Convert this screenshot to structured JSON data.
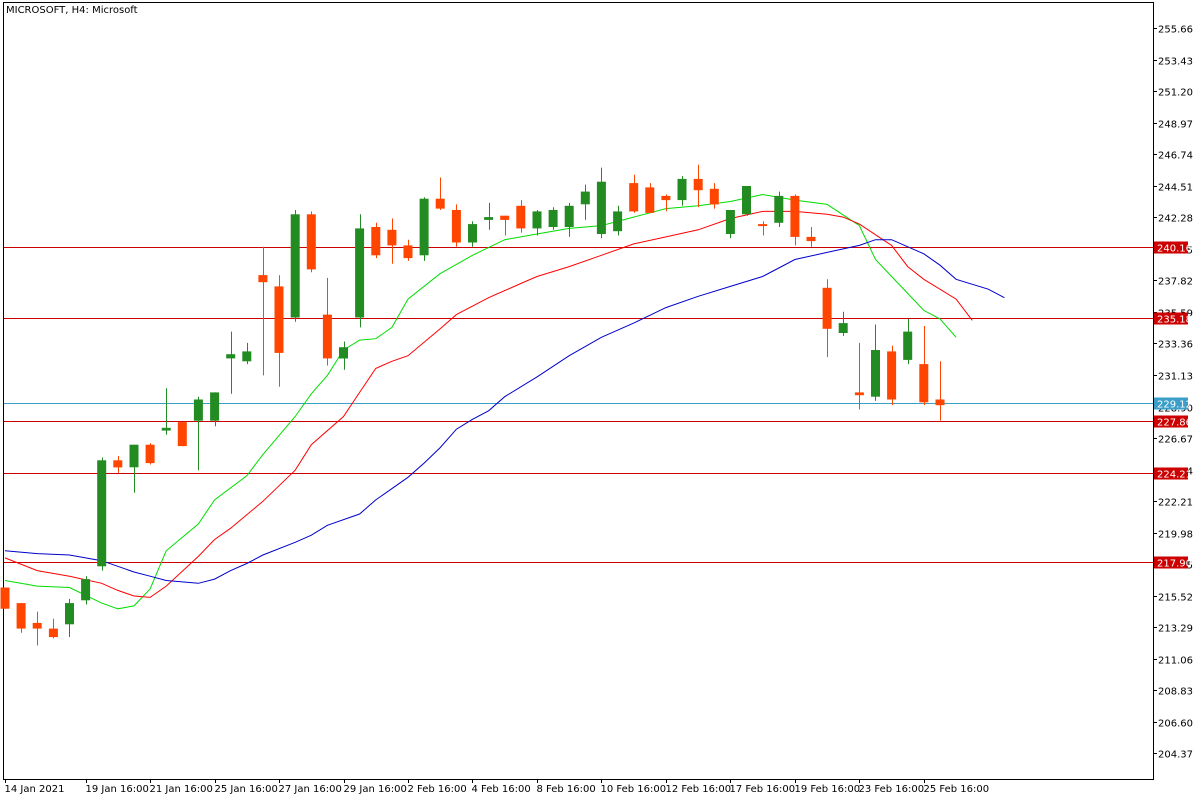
{
  "chart_data": {
    "type": "candlestick",
    "title": "MICROSOFT, H4:  Microsoft",
    "ylim": [
      202.56,
      257.44
    ],
    "y_ticks": [
      "255.66",
      "253.43",
      "251.20",
      "248.97",
      "246.74",
      "244.51",
      "242.28",
      "240.05",
      "237.82",
      "235.59",
      "233.36",
      "231.13",
      "228.90",
      "226.67",
      "224.44",
      "222.21",
      "219.98",
      "217.75",
      "215.52",
      "213.29",
      "211.06",
      "208.83",
      "206.60",
      "204.37"
    ],
    "x_labels": [
      "14 Jan 2021",
      "19 Jan 16:00",
      "21 Jan 16:00",
      "25 Jan 16:00",
      "27 Jan 16:00",
      "29 Jan 16:00",
      "2 Feb 16:00",
      "4 Feb 16:00",
      "8 Feb 16:00",
      "10 Feb 16:00",
      "12 Feb 16:00",
      "17 Feb 16:00",
      "19 Feb 16:00",
      "23 Feb 16:00",
      "25 Feb 16:00"
    ],
    "x_label_index": [
      0,
      5,
      9,
      13,
      17,
      21,
      25,
      29,
      33,
      37,
      41,
      45,
      49,
      53,
      57
    ],
    "candles": [
      {
        "o": 216.1,
        "h": 216.1,
        "l": 214.6,
        "c": 214.6
      },
      {
        "o": 215.0,
        "h": 215.0,
        "l": 212.9,
        "c": 213.2
      },
      {
        "o": 213.6,
        "h": 214.4,
        "l": 212.0,
        "c": 213.2
      },
      {
        "o": 213.2,
        "h": 213.9,
        "l": 212.5,
        "c": 212.6
      },
      {
        "o": 213.5,
        "h": 215.3,
        "l": 212.6,
        "c": 215.0
      },
      {
        "o": 215.2,
        "h": 216.9,
        "l": 214.9,
        "c": 216.7
      },
      {
        "o": 217.6,
        "h": 225.3,
        "l": 217.3,
        "c": 225.1
      },
      {
        "o": 225.1,
        "h": 225.4,
        "l": 224.2,
        "c": 224.6
      },
      {
        "o": 224.6,
        "h": 226.2,
        "l": 222.8,
        "c": 226.2
      },
      {
        "o": 226.2,
        "h": 226.3,
        "l": 224.8,
        "c": 224.9
      },
      {
        "o": 227.2,
        "h": 230.2,
        "l": 226.9,
        "c": 227.4
      },
      {
        "o": 227.8,
        "h": 227.8,
        "l": 226.1,
        "c": 226.1
      },
      {
        "o": 227.9,
        "h": 229.6,
        "l": 224.4,
        "c": 229.4
      },
      {
        "o": 227.9,
        "h": 229.9,
        "l": 227.5,
        "c": 229.9
      },
      {
        "o": 232.3,
        "h": 234.2,
        "l": 229.8,
        "c": 232.6
      },
      {
        "o": 232.1,
        "h": 233.4,
        "l": 231.9,
        "c": 232.8
      },
      {
        "o": 238.2,
        "h": 240.2,
        "l": 231.1,
        "c": 237.7
      },
      {
        "o": 237.4,
        "h": 238.2,
        "l": 230.3,
        "c": 232.7
      },
      {
        "o": 235.2,
        "h": 242.8,
        "l": 234.9,
        "c": 242.5
      },
      {
        "o": 242.5,
        "h": 242.7,
        "l": 238.4,
        "c": 238.6
      },
      {
        "o": 235.4,
        "h": 238.0,
        "l": 231.8,
        "c": 232.3
      },
      {
        "o": 232.3,
        "h": 233.5,
        "l": 231.5,
        "c": 233.1
      },
      {
        "o": 235.2,
        "h": 242.5,
        "l": 234.5,
        "c": 241.5
      },
      {
        "o": 241.6,
        "h": 241.9,
        "l": 239.4,
        "c": 239.6
      },
      {
        "o": 241.4,
        "h": 242.2,
        "l": 239.0,
        "c": 240.3
      },
      {
        "o": 240.3,
        "h": 240.7,
        "l": 239.2,
        "c": 239.4
      },
      {
        "o": 239.6,
        "h": 243.7,
        "l": 239.2,
        "c": 243.6
      },
      {
        "o": 243.6,
        "h": 245.1,
        "l": 242.8,
        "c": 242.9
      },
      {
        "o": 242.8,
        "h": 243.2,
        "l": 240.2,
        "c": 240.5
      },
      {
        "o": 240.5,
        "h": 242.0,
        "l": 240.2,
        "c": 241.8
      },
      {
        "o": 242.1,
        "h": 243.3,
        "l": 241.4,
        "c": 242.3
      },
      {
        "o": 242.4,
        "h": 242.4,
        "l": 241.0,
        "c": 242.1
      },
      {
        "o": 243.1,
        "h": 243.5,
        "l": 241.2,
        "c": 241.5
      },
      {
        "o": 241.5,
        "h": 242.8,
        "l": 241.0,
        "c": 242.7
      },
      {
        "o": 241.6,
        "h": 243.0,
        "l": 241.4,
        "c": 242.8
      },
      {
        "o": 241.6,
        "h": 243.3,
        "l": 240.9,
        "c": 243.1
      },
      {
        "o": 243.2,
        "h": 244.6,
        "l": 242.1,
        "c": 244.1
      },
      {
        "o": 241.1,
        "h": 245.8,
        "l": 240.8,
        "c": 244.8
      },
      {
        "o": 241.3,
        "h": 243.1,
        "l": 241.0,
        "c": 242.7
      },
      {
        "o": 244.7,
        "h": 245.3,
        "l": 242.6,
        "c": 242.7
      },
      {
        "o": 244.4,
        "h": 244.7,
        "l": 242.6,
        "c": 242.6
      },
      {
        "o": 243.8,
        "h": 243.9,
        "l": 242.7,
        "c": 243.5
      },
      {
        "o": 243.5,
        "h": 245.2,
        "l": 243.1,
        "c": 245.0
      },
      {
        "o": 245.0,
        "h": 246.0,
        "l": 243.0,
        "c": 244.2
      },
      {
        "o": 244.3,
        "h": 244.7,
        "l": 242.9,
        "c": 243.2
      },
      {
        "o": 241.1,
        "h": 242.6,
        "l": 240.8,
        "c": 242.8
      },
      {
        "o": 242.5,
        "h": 244.4,
        "l": 242.4,
        "c": 244.5
      },
      {
        "o": 241.8,
        "h": 242.0,
        "l": 241.0,
        "c": 241.7
      },
      {
        "o": 241.9,
        "h": 244.1,
        "l": 241.6,
        "c": 243.8
      },
      {
        "o": 243.8,
        "h": 243.9,
        "l": 240.3,
        "c": 240.9
      },
      {
        "o": 240.9,
        "h": 241.6,
        "l": 240.2,
        "c": 240.6
      },
      {
        "o": 237.3,
        "h": 237.9,
        "l": 232.4,
        "c": 234.4
      },
      {
        "o": 234.1,
        "h": 235.6,
        "l": 233.9,
        "c": 234.8
      },
      {
        "o": 229.9,
        "h": 233.4,
        "l": 228.7,
        "c": 229.7
      },
      {
        "o": 229.6,
        "h": 234.7,
        "l": 229.3,
        "c": 232.9
      },
      {
        "o": 232.8,
        "h": 233.2,
        "l": 229.0,
        "c": 229.4
      },
      {
        "o": 232.2,
        "h": 235.1,
        "l": 231.9,
        "c": 234.2
      },
      {
        "o": 231.9,
        "h": 234.6,
        "l": 229.0,
        "c": 229.2
      },
      {
        "o": 229.4,
        "h": 232.1,
        "l": 227.9,
        "c": 229.0
      }
    ],
    "series": [
      {
        "color": "#00dd00",
        "points": [
          [
            0,
            216.6
          ],
          [
            2,
            216.2
          ],
          [
            4,
            216.1
          ],
          [
            6,
            215.0
          ],
          [
            7,
            214.6
          ],
          [
            8,
            214.8
          ],
          [
            9,
            216.0
          ],
          [
            10,
            218.7
          ],
          [
            12,
            220.6
          ],
          [
            13,
            222.3
          ],
          [
            15,
            224.0
          ],
          [
            16,
            225.5
          ],
          [
            18,
            228.2
          ],
          [
            19,
            229.8
          ],
          [
            20,
            231.1
          ],
          [
            21,
            232.9
          ],
          [
            22,
            233.6
          ],
          [
            23,
            233.7
          ],
          [
            24,
            234.5
          ],
          [
            25,
            236.5
          ],
          [
            27,
            238.3
          ],
          [
            29,
            239.6
          ],
          [
            31,
            240.7
          ],
          [
            33,
            241.1
          ],
          [
            35,
            241.5
          ],
          [
            37,
            241.7
          ],
          [
            39,
            242.3
          ],
          [
            41,
            242.9
          ],
          [
            43,
            243.1
          ],
          [
            45,
            243.4
          ],
          [
            47,
            243.9
          ],
          [
            49,
            243.5
          ],
          [
            51,
            243.2
          ],
          [
            53,
            241.7
          ],
          [
            54,
            239.3
          ],
          [
            56,
            236.9
          ],
          [
            57,
            235.7
          ],
          [
            58,
            235.1
          ],
          [
            59,
            233.8
          ]
        ]
      },
      {
        "color": "#ff0000",
        "points": [
          [
            0,
            218.2
          ],
          [
            2,
            217.3
          ],
          [
            4,
            216.9
          ],
          [
            6,
            216.4
          ],
          [
            7,
            215.9
          ],
          [
            8,
            215.5
          ],
          [
            9,
            215.4
          ],
          [
            10,
            216.2
          ],
          [
            12,
            218.3
          ],
          [
            13,
            219.5
          ],
          [
            14,
            220.3
          ],
          [
            16,
            222.2
          ],
          [
            18,
            224.4
          ],
          [
            19,
            226.2
          ],
          [
            21,
            228.2
          ],
          [
            22,
            229.9
          ],
          [
            23,
            231.6
          ],
          [
            24,
            232.1
          ],
          [
            25,
            232.5
          ],
          [
            27,
            234.4
          ],
          [
            28,
            235.4
          ],
          [
            30,
            236.6
          ],
          [
            32,
            237.6
          ],
          [
            33,
            238.1
          ],
          [
            35,
            238.8
          ],
          [
            37,
            239.6
          ],
          [
            39,
            240.4
          ],
          [
            41,
            240.9
          ],
          [
            43,
            241.4
          ],
          [
            45,
            242.2
          ],
          [
            47,
            242.7
          ],
          [
            49,
            242.7
          ],
          [
            51,
            242.5
          ],
          [
            52,
            242.3
          ],
          [
            53,
            241.8
          ],
          [
            55,
            240.3
          ],
          [
            56,
            238.8
          ],
          [
            57,
            237.9
          ],
          [
            59,
            236.5
          ],
          [
            60,
            235.0
          ]
        ]
      },
      {
        "color": "#0000cc",
        "points": [
          [
            0,
            218.7
          ],
          [
            2,
            218.5
          ],
          [
            4,
            218.4
          ],
          [
            6,
            218.0
          ],
          [
            7,
            217.6
          ],
          [
            8,
            217.2
          ],
          [
            9,
            216.9
          ],
          [
            10,
            216.6
          ],
          [
            12,
            216.4
          ],
          [
            13,
            216.7
          ],
          [
            14,
            217.3
          ],
          [
            15,
            217.8
          ],
          [
            16,
            218.4
          ],
          [
            18,
            219.3
          ],
          [
            19,
            219.8
          ],
          [
            20,
            220.5
          ],
          [
            22,
            221.3
          ],
          [
            23,
            222.3
          ],
          [
            25,
            223.9
          ],
          [
            26,
            224.9
          ],
          [
            27,
            226.0
          ],
          [
            28,
            227.3
          ],
          [
            29,
            228.0
          ],
          [
            30,
            228.6
          ],
          [
            31,
            229.6
          ],
          [
            33,
            231.0
          ],
          [
            35,
            232.5
          ],
          [
            37,
            233.8
          ],
          [
            39,
            234.8
          ],
          [
            41,
            235.9
          ],
          [
            43,
            236.7
          ],
          [
            45,
            237.4
          ],
          [
            47,
            238.1
          ],
          [
            48,
            238.7
          ],
          [
            49,
            239.3
          ],
          [
            51,
            239.8
          ],
          [
            53,
            240.3
          ],
          [
            54,
            240.7
          ],
          [
            55,
            240.7
          ],
          [
            57,
            239.7
          ],
          [
            58,
            238.9
          ],
          [
            59,
            237.9
          ],
          [
            61,
            237.2
          ],
          [
            62,
            236.6
          ]
        ]
      }
    ],
    "hlines": [
      {
        "value": 240.16,
        "label": "240.16",
        "color": "#cc0000"
      },
      {
        "value": 235.18,
        "label": "235.18",
        "color": "#cc0000"
      },
      {
        "value": 229.12,
        "label": "229.12",
        "color": "#3a9ec8"
      },
      {
        "value": 227.86,
        "label": "227.86",
        "color": "#cc0000"
      },
      {
        "value": 224.21,
        "label": "224.21",
        "color": "#cc0000"
      },
      {
        "value": 217.9,
        "label": "217.90",
        "color": "#cc0000"
      }
    ],
    "colors": {
      "bull": "#228b22",
      "bear": "#ff4500",
      "grid": "#000000",
      "background": "#ffffff"
    }
  }
}
